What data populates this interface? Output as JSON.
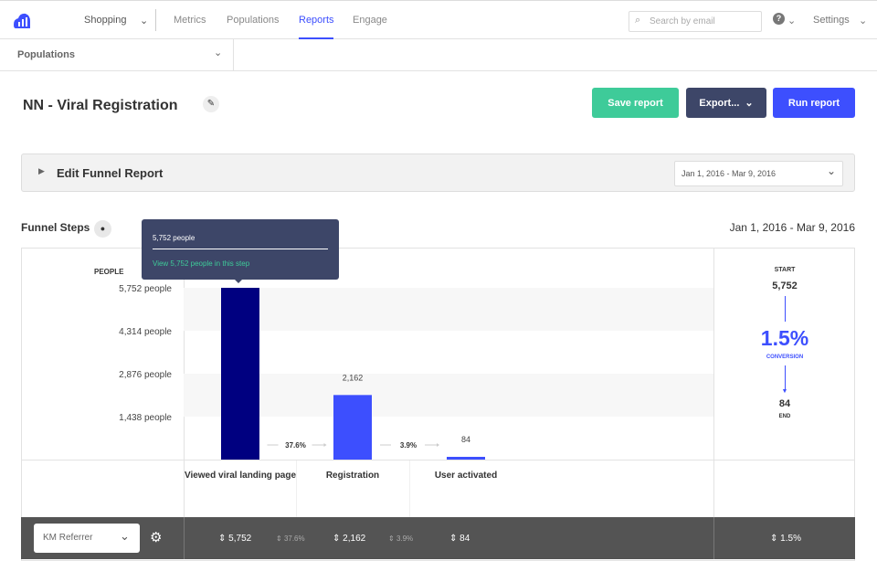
{
  "nav": {
    "app": "Shopping",
    "items": [
      "Metrics",
      "Populations",
      "Reports",
      "Engage"
    ],
    "active": "Reports",
    "search_placeholder": "Search by email",
    "help": "?",
    "settings": "Settings"
  },
  "subbar": {
    "populations": "Populations"
  },
  "report": {
    "title": "NN - Viral Registration",
    "save": "Save report",
    "export": "Export...",
    "run": "Run report"
  },
  "edit": {
    "label": "Edit Funnel Report",
    "date_range": "Jan 1, 2016 - Mar 9, 2016"
  },
  "funnel": {
    "title": "Funnel Steps",
    "date_range": "Jan 1, 2016 - Mar 9, 2016"
  },
  "tooltip": {
    "value": "5,752 people",
    "link": "View 5,752 people in this step"
  },
  "summary": {
    "start_label": "START",
    "start": "5,752",
    "conversion": "1.5%",
    "conversion_label": "CONVERSION",
    "end": "84",
    "end_label": "END"
  },
  "breakdown": {
    "select": "KM Referrer",
    "values": [
      "5,752",
      "37.6%",
      "2,162",
      "3.9%",
      "84"
    ],
    "conversion": "1.5%"
  },
  "chart_data": {
    "type": "bar",
    "ylabel": "PEOPLE",
    "yticks": [
      "5,752 people",
      "4,314 people",
      "2,876 people",
      "1,438 people"
    ],
    "ytick_values": [
      5752,
      4314,
      2876,
      1438
    ],
    "ylim": [
      0,
      5752
    ],
    "categories": [
      "Viewed viral landing page",
      "Registration",
      "User activated"
    ],
    "values": [
      5752,
      2162,
      84
    ],
    "data_labels": [
      "",
      "2,162",
      "84"
    ],
    "step_rates": [
      "37.6%",
      "3.9%"
    ],
    "colors": [
      "#000080",
      "#3d4ffe",
      "#3d4ffe"
    ]
  }
}
